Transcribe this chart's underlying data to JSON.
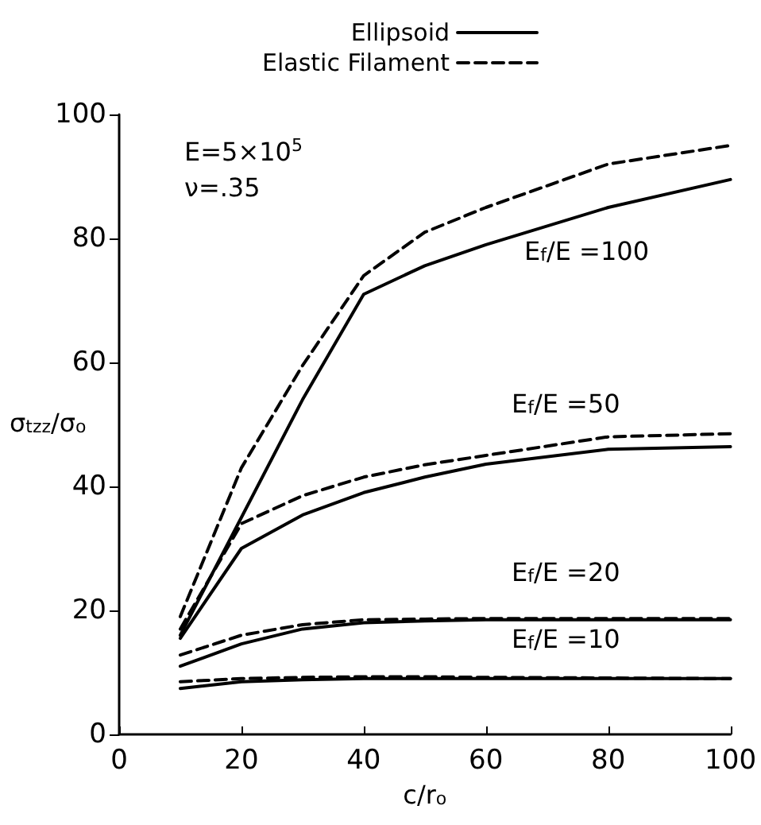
{
  "chart_data": {
    "type": "line",
    "xlabel": "c/r$_{o}$",
    "ylabel": "σ$_{tzz}$/σ$_{o}$",
    "x": [
      10,
      20,
      30,
      40,
      50,
      60,
      80,
      100
    ],
    "series": [
      {
        "name": "Ellipsoid",
        "color": "#000000",
        "line_style": "solid",
        "values": [
          16,
          35,
          54,
          71,
          75.6,
          79,
          85,
          89.5
        ]
      },
      {
        "name": "Elastic Filament",
        "color": "#000000",
        "line_style": "dashed",
        "values": [
          19,
          43,
          59.5,
          74,
          81,
          85,
          92,
          95
        ]
      },
      {
        "color": "#000000",
        "line_style": "solid",
        "values": [
          15.5,
          30,
          35.4,
          39,
          41.5,
          43.6,
          46,
          46.4
        ]
      },
      {
        "color": "#000000",
        "line_style": "dashed",
        "values": [
          17,
          34,
          38.5,
          41.5,
          43.5,
          45,
          48,
          48.5
        ]
      },
      {
        "color": "#000000",
        "line_style": "solid",
        "values": [
          11,
          14.6,
          17,
          18,
          18.3,
          18.5,
          18.5,
          18.5
        ]
      },
      {
        "color": "#000000",
        "line_style": "dashed",
        "values": [
          12.8,
          16,
          17.7,
          18.5,
          18.6,
          18.7,
          18.7,
          18.7
        ]
      },
      {
        "color": "#000000",
        "line_style": "solid",
        "values": [
          7.4,
          8.5,
          8.8,
          9,
          9,
          9,
          9,
          9
        ]
      },
      {
        "color": "#000000",
        "line_style": "dashed",
        "values": [
          8.5,
          9,
          9.2,
          9.3,
          9.3,
          9.2,
          9.1,
          9
        ]
      }
    ],
    "xlim": [
      0,
      100
    ],
    "xticks": [
      0,
      20,
      40,
      60,
      80,
      100
    ],
    "ylim": [
      0,
      100
    ],
    "yticks": [
      0,
      20,
      40,
      60,
      80,
      100
    ],
    "grid": false,
    "legend": "top",
    "marker": "none",
    "annotations": [
      "E=5×10$^{5}$",
      "ν=.35",
      "E$_{f}$/E =100",
      "E$_{f}$/E =50",
      "E$_{f}$/E =20",
      "E$_{f}$/E =10"
    ]
  }
}
